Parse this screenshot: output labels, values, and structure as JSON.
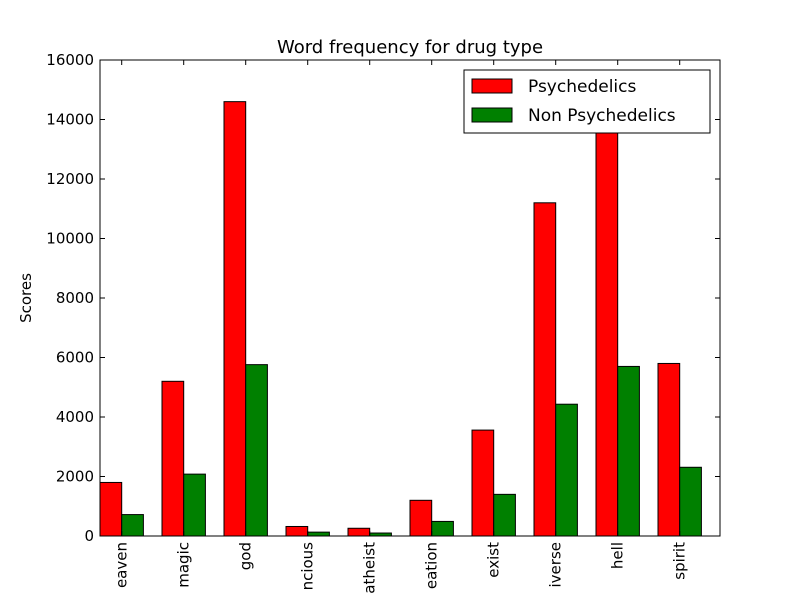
{
  "chart_data": {
    "type": "bar",
    "title": "Word frequency for drug type",
    "xlabel": "",
    "ylabel": "Scores",
    "ylim": [
      0,
      16000
    ],
    "yticks": [
      0,
      2000,
      4000,
      6000,
      8000,
      10000,
      12000,
      14000,
      16000
    ],
    "ytick_labels": [
      "0",
      "2000",
      "4000",
      "6000",
      "8000",
      "10000",
      "12000",
      "14000",
      "16000"
    ],
    "categories": [
      "eaven",
      "magic",
      "god",
      "ncious",
      "atheist",
      "eation",
      "exist",
      "iverse",
      "hell",
      "spirit"
    ],
    "series": [
      {
        "name": "Psychedelics",
        "color": "#ff0000",
        "values": [
          1800,
          5200,
          14600,
          320,
          260,
          1200,
          3560,
          11200,
          13600,
          5800
        ]
      },
      {
        "name": "Non Psychedelics",
        "color": "#008000",
        "values": [
          720,
          2080,
          5760,
          130,
          100,
          490,
          1400,
          4430,
          5700,
          2310
        ]
      }
    ],
    "legend": "top-right",
    "grid": false
  }
}
